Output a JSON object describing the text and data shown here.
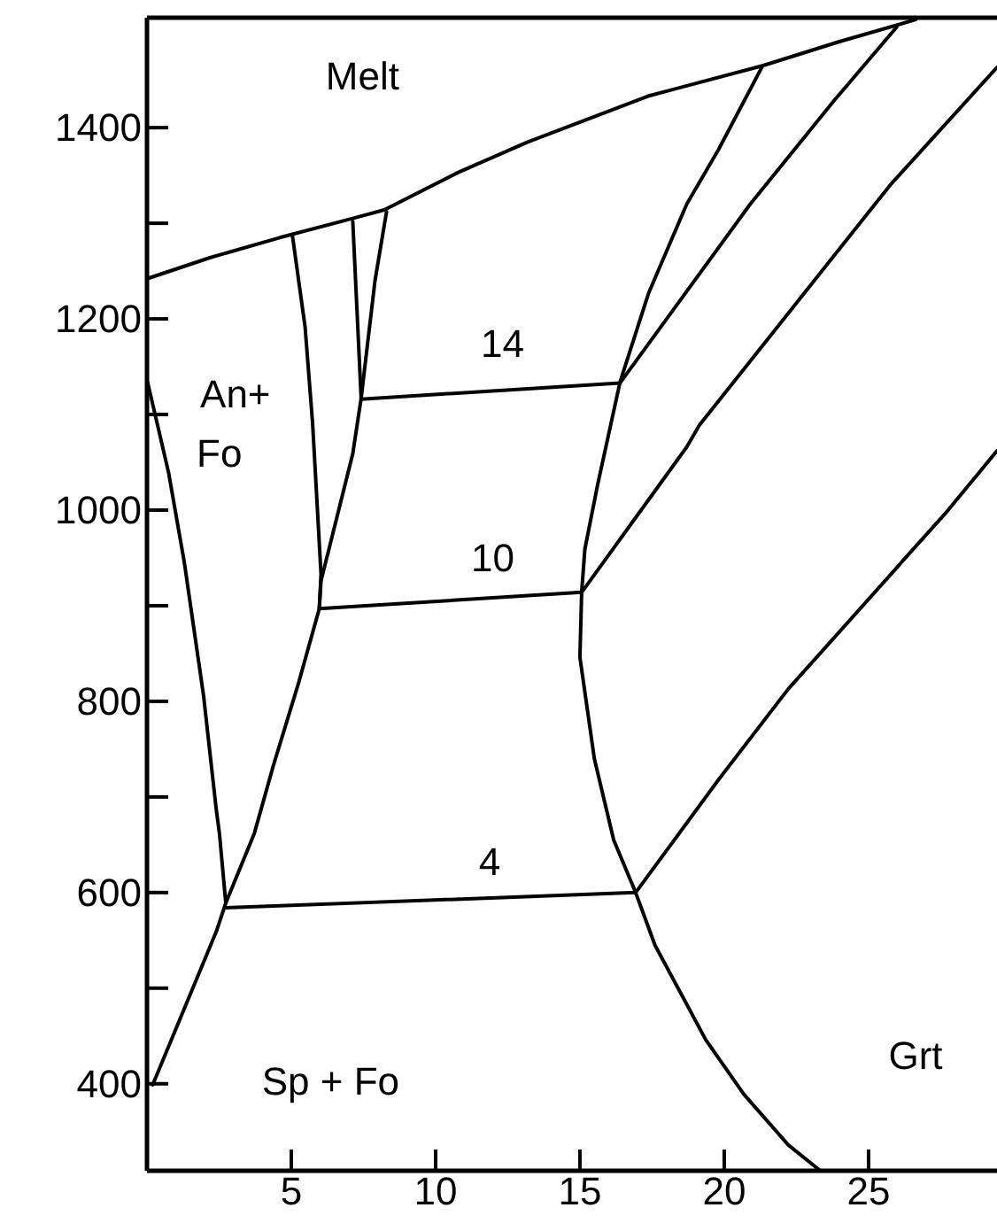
{
  "chart_data": {
    "type": "line",
    "xlim": [
      0,
      29.45
    ],
    "ylim": [
      309,
      1515
    ],
    "xticks": [
      5,
      10,
      15,
      20,
      25
    ],
    "yticks": [
      400,
      {
        "value": 500,
        "label": null
      },
      600,
      {
        "value": 700,
        "label": null
      },
      800,
      {
        "value": 900,
        "label": null
      },
      1000,
      {
        "value": 1100,
        "label": null
      },
      1200,
      {
        "value": 1300,
        "label": null
      },
      1400
    ],
    "grid": false,
    "marker": "none",
    "line_style": "solid",
    "series": [
      {
        "color": "#000000",
        "x": [
          0,
          2.18,
          4.6,
          7.24,
          8.22,
          10.77,
          13.19,
          17.36,
          21.35,
          23.99,
          26.63
        ],
        "values": [
          1242,
          1264,
          1285,
          1306,
          1314,
          1353,
          1385,
          1433,
          1465,
          1490,
          1513
        ]
      },
      {
        "color": "#000000",
        "x": [
          5.04,
          5.48,
          5.74,
          6.03,
          5.97
        ],
        "values": [
          1287,
          1191,
          1090,
          933,
          897
        ]
      },
      {
        "color": "#000000",
        "x": [
          7.13,
          7.42
        ],
        "values": [
          1302,
          1117
        ]
      },
      {
        "color": "#000000",
        "x": [
          8.3,
          7.9,
          7.42,
          7.13,
          6.03,
          5.97,
          5.26,
          4.38,
          3.72,
          2.73,
          2.4,
          0.2
        ],
        "values": [
          1312,
          1240,
          1117,
          1059,
          926,
          897,
          820,
          733,
          662,
          589,
          559,
          399
        ]
      },
      {
        "color": "#000000",
        "x": [
          0.02,
          0.75,
          1.29,
          1.96,
          2.4,
          2.51,
          2.73
        ],
        "values": [
          1134,
          1039,
          946,
          806,
          687,
          662,
          589
        ]
      },
      {
        "color": "#000000",
        "x": [
          2.73,
          16.93
        ],
        "values": [
          584,
          600
        ]
      },
      {
        "color": "#000000",
        "x": [
          5.97,
          15.06
        ],
        "values": [
          897,
          914
        ]
      },
      {
        "color": "#000000",
        "x": [
          7.42,
          16.39
        ],
        "values": [
          1116,
          1133
        ]
      },
      {
        "color": "#000000",
        "x": [
          21.3,
          19.8,
          18.7,
          17.38,
          16.39,
          15.61,
          15.17,
          15.06,
          15.0,
          15.5,
          16.17,
          16.93,
          17.6,
          19.36,
          20.68,
          22.22,
          23.33
        ],
        "values": [
          1463,
          1377,
          1320,
          1227,
          1134,
          1026,
          959,
          914,
          846,
          740,
          655,
          600,
          545,
          446,
          389,
          336,
          309
        ]
      },
      {
        "color": "#000000",
        "x": [
          16.39,
          20.9,
          23.77,
          25.97
        ],
        "values": [
          1133,
          1320,
          1427,
          1505
        ]
      },
      {
        "color": "#000000",
        "x": [
          15.06,
          18.7,
          19.14,
          25.75,
          29.45
        ],
        "values": [
          914,
          1066,
          1089,
          1340,
          1463
        ]
      },
      {
        "color": "#000000",
        "x": [
          16.93,
          19.8,
          22.22,
          27.73,
          29.45
        ],
        "values": [
          600,
          718,
          813,
          999,
          1062
        ]
      }
    ],
    "annotations": [
      "Melt",
      "14",
      "An+",
      "Fo",
      "10",
      "4",
      "Sp + Fo",
      "Grt"
    ]
  }
}
